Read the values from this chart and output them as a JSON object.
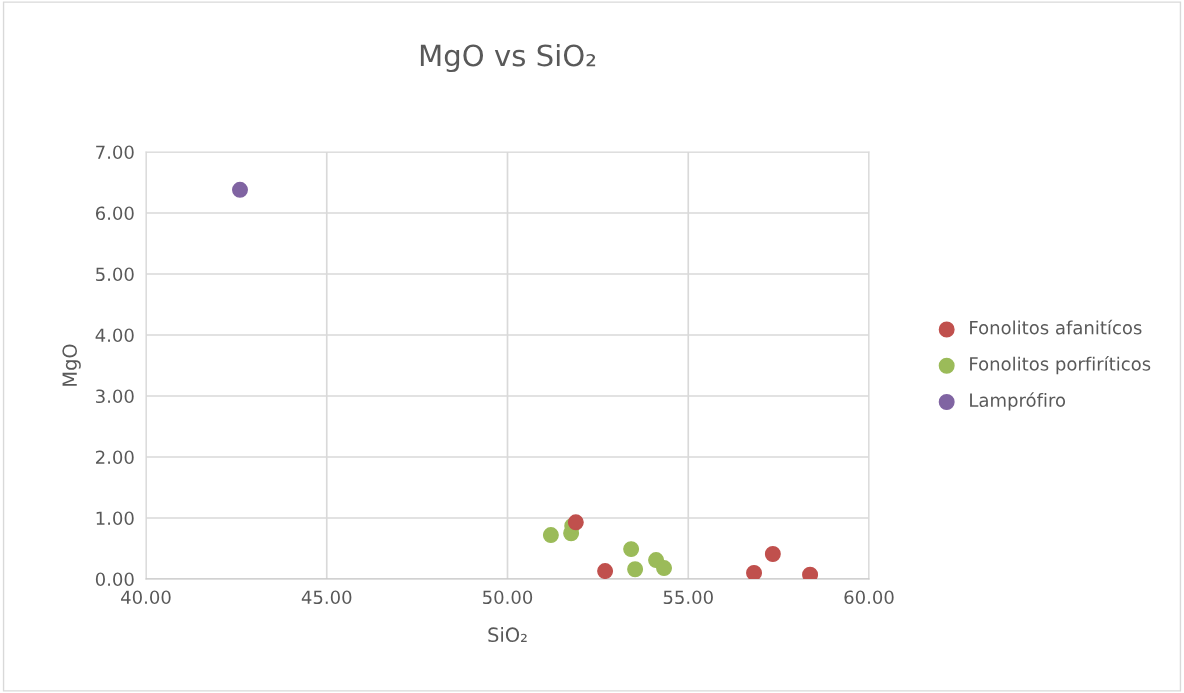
{
  "chart_data": {
    "type": "scatter",
    "title": "MgO vs SiO₂",
    "xlabel": "SiO₂",
    "ylabel": "MgO",
    "xlim": [
      40,
      60
    ],
    "xticks": [
      {
        "value": 40,
        "label": "40.00"
      },
      {
        "value": 45,
        "label": "45.00"
      },
      {
        "value": 50,
        "label": "50.00"
      },
      {
        "value": 55,
        "label": "55.00"
      },
      {
        "value": 60,
        "label": "60.00"
      }
    ],
    "ylim": [
      0,
      7
    ],
    "yticks": [
      {
        "value": 0,
        "label": "0.00"
      },
      {
        "value": 1,
        "label": "1.00"
      },
      {
        "value": 2,
        "label": "2.00"
      },
      {
        "value": 3,
        "label": "3.00"
      },
      {
        "value": 4,
        "label": "4.00"
      },
      {
        "value": 5,
        "label": "5.00"
      },
      {
        "value": 6,
        "label": "6.00"
      },
      {
        "value": 7,
        "label": "7.00"
      }
    ],
    "grid": true,
    "legend": "right",
    "marker": "circle",
    "series": [
      {
        "name": "Fonolitos afanitícos",
        "color": "#c0504d",
        "x": [
          51.89,
          52.7,
          56.82,
          57.34,
          58.37
        ],
        "values": [
          0.93,
          0.13,
          0.1,
          0.41,
          0.07
        ]
      },
      {
        "name": "Fonolitos porfiríticos",
        "color": "#9bbb59",
        "x": [
          51.2,
          51.76,
          51.79,
          53.42,
          53.53,
          54.11,
          54.33
        ],
        "values": [
          0.72,
          0.75,
          0.87,
          0.49,
          0.16,
          0.31,
          0.18
        ]
      },
      {
        "name": "Lamprófiro",
        "color": "#8064a2",
        "x": [
          42.6
        ],
        "values": [
          6.38
        ]
      }
    ]
  }
}
